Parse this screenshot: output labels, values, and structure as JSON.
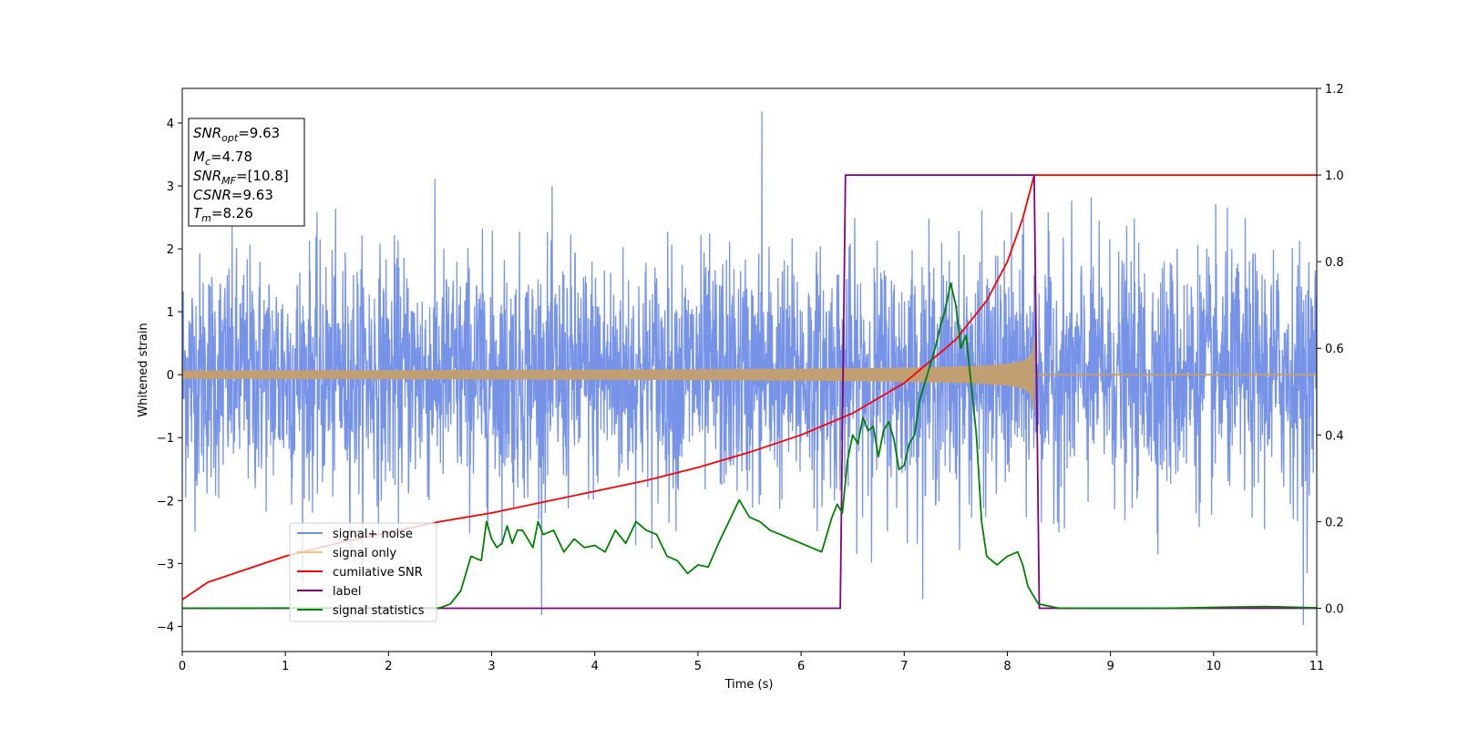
{
  "chart_data": {
    "type": "line",
    "title": "",
    "xlabel": "Time (s)",
    "ylabel": "Whitened strain",
    "xlim": [
      0,
      11
    ],
    "ylim_left": [
      -4.4,
      4.55
    ],
    "ylim_right": [
      -0.1,
      1.2
    ],
    "x_ticks": [
      0,
      1,
      2,
      3,
      4,
      5,
      6,
      7,
      8,
      9,
      10,
      11
    ],
    "y_ticks_left": [
      -4,
      -3,
      -2,
      -1,
      0,
      1,
      2,
      3,
      4
    ],
    "y_ticks_right": [
      0.0,
      0.2,
      0.4,
      0.6,
      0.8,
      1.0,
      1.2
    ],
    "grid": false,
    "legend_position": "lower-left",
    "colors": {
      "signal_noise": "#6f8de6",
      "signal_only": "#c29f72",
      "cumulative_snr": "#ff0000",
      "label": "#800080",
      "signal_statistics": "#008000",
      "legend_signal_only": "#f5c07a"
    },
    "series": [
      {
        "name": "signal+ noise",
        "axis": "left",
        "kind": "noise",
        "description_values": {
          "mean": 0,
          "std": 0.95,
          "peak_max": 4.18,
          "peak_min": -3.98,
          "x_range": [
            0,
            11
          ]
        }
      },
      {
        "name": "signal only",
        "axis": "left",
        "kind": "chirp",
        "description_values": {
          "start_amplitude": 0.06,
          "end_amplitude": 0.95,
          "start_time": 0,
          "merger_time": 8.26
        }
      },
      {
        "name": "cumilative SNR",
        "axis": "right",
        "x": [
          0,
          0.25,
          0.5,
          1,
          1.5,
          2,
          2.5,
          3,
          3.5,
          4,
          4.5,
          5,
          5.5,
          6,
          6.5,
          7,
          7.5,
          7.8,
          8.0,
          8.15,
          8.26,
          8.3,
          11
        ],
        "y": [
          0.02,
          0.06,
          0.08,
          0.12,
          0.15,
          0.175,
          0.2,
          0.22,
          0.245,
          0.27,
          0.295,
          0.325,
          0.36,
          0.4,
          0.45,
          0.52,
          0.62,
          0.71,
          0.8,
          0.9,
          1.0,
          1.0,
          1.0
        ]
      },
      {
        "name": "label",
        "axis": "right",
        "x": [
          0,
          6.38,
          6.43,
          8.26,
          8.31,
          11
        ],
        "y": [
          0,
          0,
          1,
          1,
          0,
          0
        ]
      },
      {
        "name": "signal statistics",
        "axis": "right",
        "x": [
          0,
          2.5,
          2.6,
          2.7,
          2.8,
          2.9,
          2.95,
          3.0,
          3.05,
          3.1,
          3.15,
          3.2,
          3.25,
          3.3,
          3.4,
          3.45,
          3.5,
          3.6,
          3.7,
          3.8,
          3.9,
          4.0,
          4.1,
          4.2,
          4.3,
          4.4,
          4.5,
          4.6,
          4.7,
          4.8,
          4.9,
          5.0,
          5.1,
          5.2,
          5.3,
          5.4,
          5.5,
          5.6,
          5.7,
          5.8,
          5.9,
          6.0,
          6.1,
          6.2,
          6.3,
          6.35,
          6.4,
          6.45,
          6.5,
          6.55,
          6.6,
          6.65,
          6.7,
          6.75,
          6.8,
          6.85,
          6.9,
          6.95,
          7.0,
          7.05,
          7.1,
          7.15,
          7.2,
          7.3,
          7.35,
          7.4,
          7.45,
          7.5,
          7.55,
          7.6,
          7.7,
          7.75,
          7.8,
          7.9,
          8.0,
          8.1,
          8.15,
          8.2,
          8.3,
          8.5,
          9.0,
          9.5,
          9.8,
          10.0,
          10.5,
          11
        ],
        "y": [
          0.0,
          0.001,
          0.01,
          0.04,
          0.12,
          0.11,
          0.2,
          0.16,
          0.14,
          0.15,
          0.19,
          0.15,
          0.18,
          0.18,
          0.14,
          0.2,
          0.17,
          0.18,
          0.13,
          0.16,
          0.14,
          0.145,
          0.13,
          0.18,
          0.15,
          0.2,
          0.18,
          0.17,
          0.12,
          0.11,
          0.08,
          0.1,
          0.095,
          0.15,
          0.2,
          0.25,
          0.21,
          0.2,
          0.18,
          0.17,
          0.16,
          0.15,
          0.14,
          0.13,
          0.21,
          0.24,
          0.22,
          0.34,
          0.4,
          0.38,
          0.44,
          0.41,
          0.42,
          0.35,
          0.41,
          0.43,
          0.39,
          0.32,
          0.33,
          0.38,
          0.4,
          0.48,
          0.52,
          0.6,
          0.65,
          0.69,
          0.75,
          0.7,
          0.6,
          0.63,
          0.4,
          0.2,
          0.12,
          0.1,
          0.12,
          0.13,
          0.1,
          0.05,
          0.01,
          0.0,
          0.0,
          0.0,
          0.001,
          0.002,
          0.004,
          0.001
        ]
      }
    ],
    "annotation_box": {
      "position": "top-left",
      "lines": [
        {
          "label": "SNR",
          "sub": "opt",
          "value": "=9.63"
        },
        {
          "label": "M",
          "sub": "c",
          "value": "=4.78"
        },
        {
          "label": "SNR",
          "sub": "MF",
          "value": "=[10.8]"
        },
        {
          "label": "CSNR",
          "sub": "",
          "value": "=9.63"
        },
        {
          "label": "T",
          "sub": "m",
          "value": "=8.26"
        }
      ]
    }
  }
}
